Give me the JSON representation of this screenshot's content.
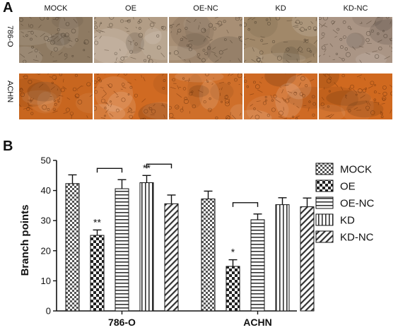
{
  "panel_a": {
    "letter": "A",
    "columns": [
      "MOCK",
      "OE",
      "OE-NC",
      "KD",
      "KD-NC"
    ],
    "rows": [
      "786-O",
      "ACHN"
    ],
    "row_tones": [
      [
        "#8e7a62",
        "#b29d86",
        "#a88f75",
        "#a18869",
        "#aa9585"
      ],
      [
        "#c8661f",
        "#d06a22",
        "#cf6f2a",
        "#cf6a24",
        "#d0691f"
      ]
    ]
  },
  "panel_b": {
    "letter": "B"
  },
  "chart_data": {
    "type": "bar",
    "ylabel": "Branch points",
    "ylim": [
      0,
      50
    ],
    "yticks": [
      0,
      10,
      20,
      30,
      40,
      50
    ],
    "categories": [
      "786-O",
      "ACHN"
    ],
    "series": [
      {
        "name": "MOCK",
        "pattern": "checker",
        "values": [
          42.3,
          37.2
        ],
        "errors": [
          2.9,
          2.6
        ]
      },
      {
        "name": "OE",
        "pattern": "bigcheck",
        "values": [
          25.1,
          14.8
        ],
        "errors": [
          1.8,
          2.2
        ]
      },
      {
        "name": "OE-NC",
        "pattern": "hlines",
        "values": [
          40.6,
          30.3
        ],
        "errors": [
          3.0,
          1.9
        ]
      },
      {
        "name": "KD",
        "pattern": "vlines",
        "values": [
          42.6,
          35.3
        ],
        "errors": [
          2.4,
          2.3
        ]
      },
      {
        "name": "KD-NC",
        "pattern": "diag",
        "values": [
          35.6,
          34.6
        ],
        "errors": [
          2.9,
          2.9
        ]
      }
    ],
    "annotations": [
      {
        "text": "**",
        "group": 0,
        "series": 1
      },
      {
        "text": "**",
        "group": 0,
        "series": 3
      },
      {
        "text": "*",
        "group": 1,
        "series": 1
      }
    ],
    "brackets": [
      {
        "group": 0,
        "from": 1,
        "to": 2
      },
      {
        "group": 0,
        "from": 3,
        "to": 4
      },
      {
        "group": 1,
        "from": 1,
        "to": 2
      }
    ],
    "legend_position": "right"
  }
}
